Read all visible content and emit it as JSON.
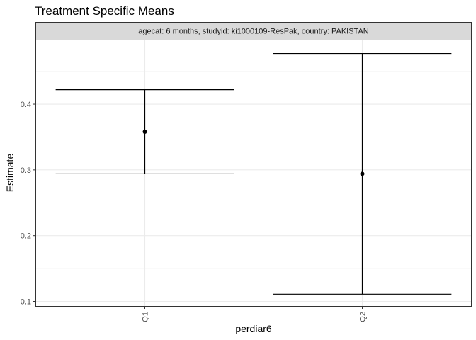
{
  "chart_data": {
    "type": "errorbar",
    "title": "Treatment Specific Means",
    "facet_label": "agecat: 6 months, studyid: ki1000109-ResPak, country: PAKISTAN",
    "xlabel": "perdiar6",
    "ylabel": "Estimate",
    "categories": [
      "Q1",
      "Q2"
    ],
    "points": [
      {
        "category": "Q1",
        "estimate": 0.358,
        "lower": 0.294,
        "upper": 0.422
      },
      {
        "category": "Q2",
        "estimate": 0.294,
        "lower": 0.111,
        "upper": 0.477
      }
    ],
    "ylim": [
      0.093,
      0.497
    ],
    "yticks": [
      0.1,
      0.2,
      0.3,
      0.4
    ],
    "ytick_labels": [
      "0.1",
      "0.2",
      "0.3",
      "0.4"
    ],
    "grid": true,
    "legend": "none"
  }
}
